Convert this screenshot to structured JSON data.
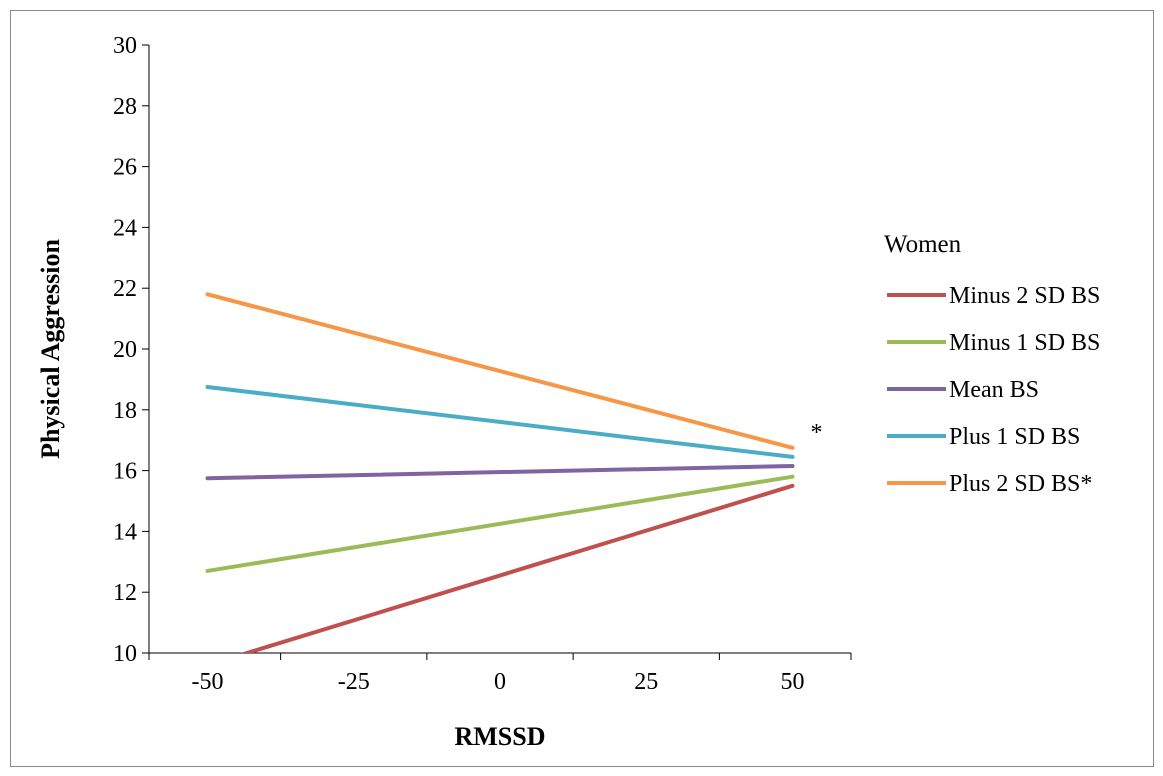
{
  "chart_data": {
    "type": "line",
    "title": "",
    "xlabel": "RMSSD",
    "ylabel": "Physical Aggression",
    "xlim": [
      -60,
      60
    ],
    "ylim": [
      10,
      30
    ],
    "x_ticks": [
      -50,
      -25,
      0,
      25,
      50
    ],
    "y_ticks": [
      10,
      12,
      14,
      16,
      18,
      20,
      22,
      24,
      26,
      28,
      30
    ],
    "x": [
      -50,
      50
    ],
    "legend_title": "Women",
    "legend_position": "right",
    "grid": false,
    "annotation": "*",
    "series": [
      {
        "name": "Minus 2 SD BS",
        "values": [
          9.6,
          15.5
        ],
        "color": "#c0504d"
      },
      {
        "name": "Minus 1 SD BS",
        "values": [
          12.7,
          15.8
        ],
        "color": "#9bbb59"
      },
      {
        "name": "Mean BS",
        "values": [
          15.75,
          16.15
        ],
        "color": "#8064a2"
      },
      {
        "name": "Plus 1 SD BS",
        "values": [
          18.75,
          16.45
        ],
        "color": "#4bacc6"
      },
      {
        "name": "Plus 2 SD BS*",
        "values": [
          21.8,
          16.75
        ],
        "color": "#f79646"
      }
    ]
  }
}
